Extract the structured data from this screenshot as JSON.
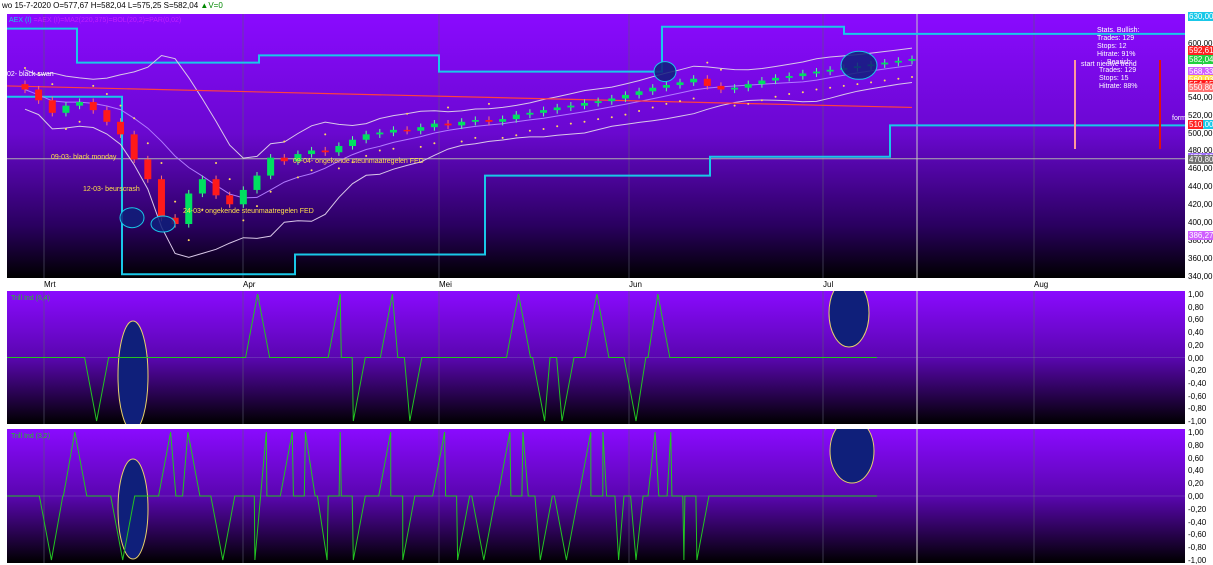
{
  "header": {
    "ohlc": "wo 15-7-2020  O=577,67  H=582,04  L=575,25  S=582,04",
    "volume": "▲V=0",
    "legend_prefix": "AEX (I)",
    "legend_mid": "=AEX (I)=MA2(220,375)=BOL(20,2)=PAR(0,02)"
  },
  "colors": {
    "bg_top": "#8a0aff",
    "bg_bottom": "#000000",
    "cyan": "#19c8e8",
    "bull": "#00e060",
    "bear": "#ff1a1a",
    "bollinger": "#d9c8e8",
    "ma": "#ff4040",
    "indicator": "#22c422",
    "circle_fill": "#0f1f7a",
    "circle_stroke": "#e8d26a",
    "label_yellow": "#ffe04a",
    "grid": "#5b5b73"
  },
  "chart_data": [
    {
      "type": "candlestick",
      "title": "AEX",
      "x_months": [
        "Mrt",
        "Apr",
        "Mei",
        "Jun",
        "Jul",
        "Aug"
      ],
      "ylim": [
        340,
        630
      ],
      "y_ticks": [
        "630,00",
        "340,00",
        "360,00",
        "380,00",
        "400,00",
        "420,00",
        "440,00",
        "460,00",
        "480,00",
        "500,00",
        "520,00",
        "540,00",
        "560,00",
        "580,00",
        "600,00"
      ],
      "y_markers": [
        {
          "label": "630,00",
          "color": "#19c8e8"
        },
        {
          "label": "592,61",
          "color": "#ff2222"
        },
        {
          "label": "582,04",
          "color": "#22d040"
        },
        {
          "label": "568,33",
          "color": "#d060ff"
        },
        {
          "label": "560,03",
          "color": "#ffe04a"
        },
        {
          "label": "554,15",
          "color": "#ff1a1a"
        },
        {
          "label": "550,80",
          "color": "#ff7070"
        },
        {
          "label": "510,00",
          "color": "#19c8e8"
        },
        {
          "label": "510",
          "color": "#ff2222"
        },
        {
          "label": "472,19",
          "color": "#a070ff"
        },
        {
          "label": "470,80",
          "color": "#707070"
        },
        {
          "label": "386,27",
          "color": "#d060ff"
        }
      ],
      "closes": [
        548,
        536,
        522,
        530,
        534,
        525,
        512,
        498,
        470,
        448,
        405,
        398,
        432,
        448,
        430,
        420,
        436,
        452,
        472,
        468,
        476,
        480,
        478,
        485,
        492,
        498,
        500,
        503,
        502,
        506,
        510,
        508,
        512,
        514,
        512,
        515,
        520,
        522,
        525,
        528,
        530,
        533,
        535,
        538,
        542,
        546,
        550,
        553,
        556,
        560,
        552,
        548,
        550,
        554,
        558,
        561,
        563,
        566,
        568,
        570,
        572,
        574,
        576,
        578,
        580,
        582
      ],
      "annotations": [
        "02- black swan",
        "09-03- black monday",
        "12-03- beurscrash",
        "24-03- ongekende steunmaatregelen FED",
        "09-04- ongekende steunmaatregelen FED",
        "start nieuwe trend",
        "formele"
      ],
      "stats": {
        "bullish_title": "Stats. Bullish:",
        "bullish_trades": "Trades: 129",
        "bullish_stops": "Stops: 12",
        "bullish_hitrate": "Hitrate: 91%",
        "bearish_title": "Bearish:",
        "bearish_trades": "Trades: 129",
        "bearish_stops": "Stops: 15",
        "bearish_hitrate": "Hitrate: 88%"
      }
    },
    {
      "type": "line",
      "title": "Trill Ind (6,4)",
      "ylim": [
        -1,
        1
      ],
      "y_ticks": [
        "1,00",
        "0,80",
        "0,60",
        "0,40",
        "0,20",
        "0,00",
        "-0,20",
        "-0,40",
        "-0,60",
        "-0,80",
        "-1,00"
      ],
      "events": [
        {
          "x": 0.08,
          "v": -1
        },
        {
          "x": 0.265,
          "v": 1
        },
        {
          "x": 0.36,
          "v": 1
        },
        {
          "x": 0.375,
          "v": -1
        },
        {
          "x": 0.42,
          "v": 1
        },
        {
          "x": 0.44,
          "v": -1
        },
        {
          "x": 0.565,
          "v": 1
        },
        {
          "x": 0.595,
          "v": -1
        },
        {
          "x": 0.615,
          "v": -1
        },
        {
          "x": 0.655,
          "v": 1
        },
        {
          "x": 0.7,
          "v": -1
        },
        {
          "x": 0.725,
          "v": 1
        }
      ]
    },
    {
      "type": "line",
      "title": "Trill Ind (3,2)",
      "ylim": [
        -1,
        1
      ],
      "y_ticks": [
        "1,00",
        "0,80",
        "0,60",
        "0,40",
        "0,20",
        "0,00",
        "-0,20",
        "-0,40",
        "-0,60",
        "-0,80",
        "-1,00"
      ],
      "events": [
        {
          "x": 0.028,
          "v": -1
        },
        {
          "x": 0.055,
          "v": 1
        },
        {
          "x": 0.11,
          "v": -1
        },
        {
          "x": 0.165,
          "v": 1
        },
        {
          "x": 0.185,
          "v": 1
        },
        {
          "x": 0.225,
          "v": -1
        },
        {
          "x": 0.262,
          "v": -1
        },
        {
          "x": 0.275,
          "v": 1
        },
        {
          "x": 0.305,
          "v": 1
        },
        {
          "x": 0.32,
          "v": 1
        },
        {
          "x": 0.345,
          "v": -1
        },
        {
          "x": 0.36,
          "v": 1
        },
        {
          "x": 0.375,
          "v": -1
        },
        {
          "x": 0.418,
          "v": 1
        },
        {
          "x": 0.432,
          "v": -1
        },
        {
          "x": 0.48,
          "v": 1
        },
        {
          "x": 0.495,
          "v": -1
        },
        {
          "x": 0.525,
          "v": -1
        },
        {
          "x": 0.555,
          "v": 1
        },
        {
          "x": 0.57,
          "v": 1
        },
        {
          "x": 0.59,
          "v": -1
        },
        {
          "x": 0.62,
          "v": -1
        },
        {
          "x": 0.648,
          "v": 1
        },
        {
          "x": 0.662,
          "v": 1
        },
        {
          "x": 0.68,
          "v": -1
        },
        {
          "x": 0.7,
          "v": -1
        },
        {
          "x": 0.722,
          "v": 1
        },
        {
          "x": 0.74,
          "v": 1
        },
        {
          "x": 0.755,
          "v": -1
        },
        {
          "x": 0.77,
          "v": -1
        }
      ]
    }
  ]
}
